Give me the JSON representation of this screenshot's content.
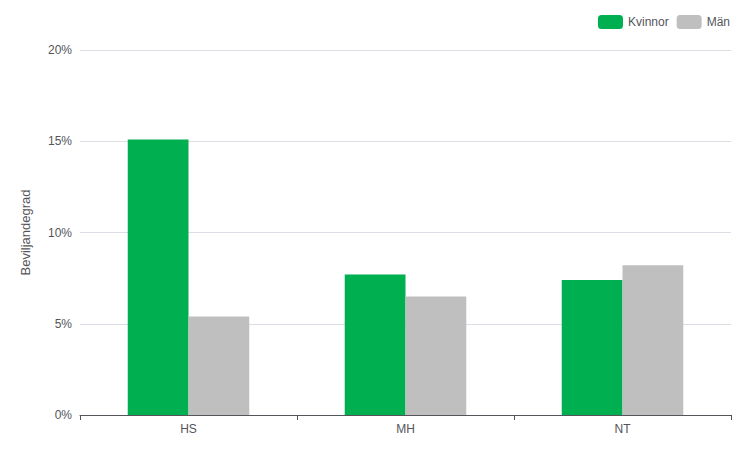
{
  "chart_data": {
    "type": "bar",
    "categories": [
      "HS",
      "MH",
      "NT"
    ],
    "series": [
      {
        "name": "Kvinnor",
        "color": "#00b050",
        "values": [
          0.151,
          0.077,
          0.074
        ]
      },
      {
        "name": "Män",
        "color": "#bfbfbf",
        "values": [
          0.054,
          0.065,
          0.082
        ]
      }
    ],
    "ylabel": "Beviljandegrad",
    "ylim": [
      0,
      0.2
    ],
    "yticks": [
      {
        "value": 0,
        "label": "0%"
      },
      {
        "value": 0.05,
        "label": "5%"
      },
      {
        "value": 0.1,
        "label": "10%"
      },
      {
        "value": 0.15,
        "label": "15%"
      },
      {
        "value": 0.2,
        "label": "20%"
      }
    ],
    "grid": true,
    "legend": "upper right"
  }
}
